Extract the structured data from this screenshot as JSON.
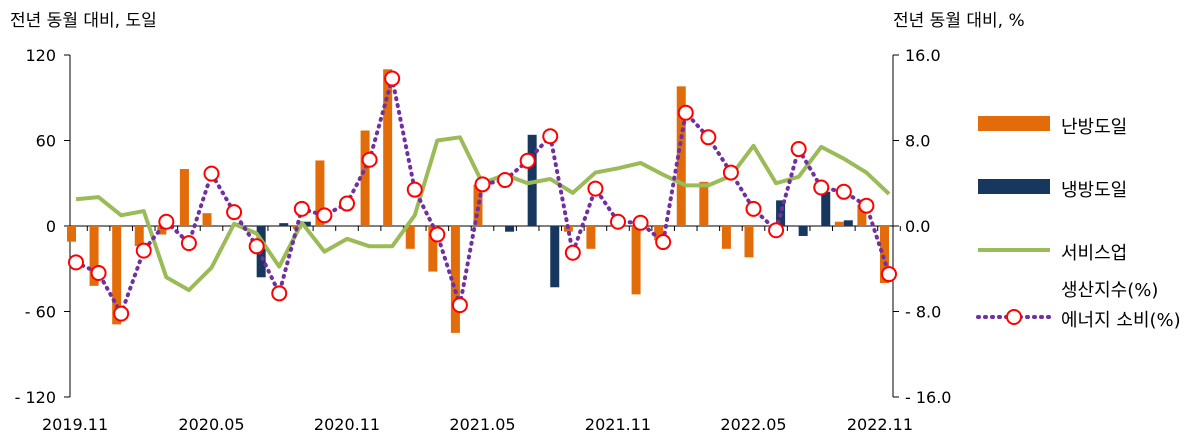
{
  "chart_data": {
    "type": "bar",
    "left_axis_title": "전년 동월 대비, 도일",
    "right_axis_title": "전년 동월 대비, %",
    "left_axis": {
      "ylim": [
        -120,
        120
      ],
      "ticks": [
        120,
        60,
        0,
        -60,
        -120
      ],
      "tick_labels": [
        "120",
        "60",
        "0",
        "- 60",
        "- 120"
      ]
    },
    "right_axis": {
      "ylim": [
        -16,
        16
      ],
      "ticks": [
        16,
        8,
        0,
        -8,
        -16
      ],
      "tick_labels": [
        "16.0",
        "8.0",
        "0.0",
        "- 8.0",
        "- 16.0"
      ]
    },
    "x_tick_labels": [
      "2019.11",
      "2020.05",
      "2020.11",
      "2021.05",
      "2021.11",
      "2022.05",
      "2022.11"
    ],
    "months": [
      "2019.11",
      "2019.12",
      "2020.01",
      "2020.02",
      "2020.03",
      "2020.04",
      "2020.05",
      "2020.06",
      "2020.07",
      "2020.08",
      "2020.09",
      "2020.10",
      "2020.11",
      "2020.12",
      "2021.01",
      "2021.02",
      "2021.03",
      "2021.04",
      "2021.05",
      "2021.06",
      "2021.07",
      "2021.08",
      "2021.09",
      "2021.10",
      "2021.11",
      "2021.12",
      "2022.01",
      "2022.02",
      "2022.03",
      "2022.04",
      "2022.05",
      "2022.06",
      "2022.07",
      "2022.08",
      "2022.09",
      "2022.10",
      "2022.11"
    ],
    "series": [
      {
        "name": "난방도일",
        "axis": "left",
        "kind": "bar",
        "color": "#E36C0A",
        "values": [
          -11,
          -42,
          -69,
          -14,
          -6,
          40,
          9,
          0,
          0,
          0,
          -2,
          46,
          0,
          67,
          110,
          -16,
          -32,
          -75,
          29,
          0,
          0,
          0,
          -4,
          -16,
          0,
          -48,
          -10,
          98,
          31,
          -16,
          -22,
          0,
          0,
          0,
          3,
          15,
          -40
        ]
      },
      {
        "name": "냉방도일",
        "axis": "left",
        "kind": "bar",
        "color": "#17375E",
        "values": [
          0,
          0,
          0,
          0,
          0,
          0,
          0,
          2,
          -36,
          2,
          3,
          0,
          0,
          0,
          0,
          0,
          0,
          0,
          0,
          -4,
          64,
          -43,
          0,
          0,
          0,
          0,
          0,
          0,
          0,
          0,
          0,
          18,
          -7,
          24,
          4,
          0,
          0
        ]
      },
      {
        "name": "서비스업 생산지수(%)",
        "axis": "right",
        "kind": "line",
        "color": "#9BBB59",
        "values": [
          2.5,
          2.7,
          1.0,
          1.4,
          -4.8,
          -6.0,
          -3.9,
          0.2,
          -0.7,
          -3.8,
          0.3,
          -2.4,
          -1.2,
          -1.9,
          -1.9,
          1.0,
          8.0,
          8.3,
          4.0,
          4.8,
          4.0,
          4.4,
          3.1,
          5.0,
          5.4,
          5.9,
          4.8,
          3.8,
          3.8,
          4.7,
          7.5,
          4.0,
          4.6,
          7.4,
          6.3,
          5.0,
          3.0
        ]
      },
      {
        "name": "에너지 소비(%)",
        "axis": "right",
        "kind": "line-markers",
        "color": "#7030A0",
        "values": [
          -3.4,
          -4.4,
          -8.2,
          -2.3,
          0.4,
          -1.6,
          4.9,
          1.3,
          -1.9,
          -6.3,
          1.6,
          1.0,
          2.1,
          6.2,
          13.8,
          3.4,
          -0.8,
          -7.4,
          3.9,
          4.3,
          6.1,
          8.4,
          -2.5,
          3.5,
          0.4,
          0.3,
          -1.5,
          10.6,
          8.3,
          5.0,
          1.6,
          -0.4,
          7.2,
          3.6,
          3.2,
          1.9,
          -4.5
        ]
      }
    ],
    "legend": {
      "placement": "right",
      "items": [
        {
          "name": "난방도일",
          "symbol": "bar"
        },
        {
          "name": "냉방도일",
          "symbol": "bar"
        },
        {
          "name_line1": "서비스업",
          "name_line2": "생산지수(%)",
          "symbol": "line"
        },
        {
          "name": "에너지 소비(%)",
          "symbol": "dotted-marker"
        }
      ]
    },
    "grid": false
  }
}
